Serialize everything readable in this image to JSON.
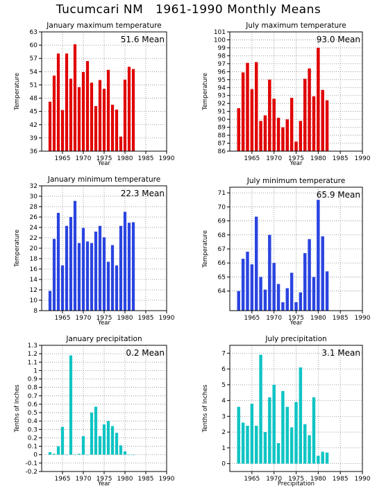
{
  "title": "Tucumcari NM   1961-1990 Monthly Means",
  "chart_data": [
    {
      "type": "bar",
      "title": "January maximum temperature",
      "mean_label": "51.6 Mean",
      "xlabel": "Year",
      "ylabel": "Temperature",
      "color": "#e00000",
      "x": [
        1962,
        1963,
        1964,
        1965,
        1966,
        1967,
        1968,
        1969,
        1970,
        1971,
        1972,
        1973,
        1974,
        1975,
        1976,
        1977,
        1978,
        1979,
        1980,
        1981,
        1982
      ],
      "values": [
        47.2,
        53.1,
        58.1,
        45.3,
        58.1,
        52.4,
        60.2,
        50.5,
        53.9,
        56.4,
        51.5,
        46.2,
        52.1,
        50.1,
        54.4,
        46.5,
        45.4,
        39.3,
        52.2,
        55.1,
        54.6
      ],
      "xlim": [
        1960,
        1990
      ],
      "xticks": [
        1965,
        1970,
        1975,
        1980,
        1985,
        1990
      ],
      "ylim": [
        36,
        63
      ],
      "yticks": [
        36,
        39,
        42,
        45,
        48,
        51,
        54,
        57,
        60,
        63
      ],
      "grid": true
    },
    {
      "type": "bar",
      "title": "July maximum temperature",
      "mean_label": "93.0 Mean",
      "xlabel": "Year",
      "ylabel": "Temperature",
      "color": "#e00000",
      "x": [
        1962,
        1963,
        1964,
        1965,
        1966,
        1967,
        1968,
        1969,
        1970,
        1971,
        1972,
        1973,
        1974,
        1975,
        1976,
        1977,
        1978,
        1979,
        1980,
        1981,
        1982
      ],
      "values": [
        91.4,
        95.9,
        97.1,
        93.8,
        97.2,
        89.8,
        90.5,
        95.0,
        92.6,
        90.2,
        89.0,
        90.0,
        92.7,
        87.2,
        89.8,
        95.1,
        96.4,
        92.9,
        99.0,
        93.7,
        92.4
      ],
      "xlim": [
        1960,
        1990
      ],
      "xticks": [
        1965,
        1970,
        1975,
        1980,
        1985,
        1990
      ],
      "ylim": [
        86,
        101
      ],
      "yticks": [
        86,
        87,
        88,
        89,
        90,
        91,
        92,
        93,
        94,
        95,
        96,
        97,
        98,
        99,
        100,
        101
      ],
      "grid": true
    },
    {
      "type": "bar",
      "title": "January minimum temperature",
      "mean_label": "22.3 Mean",
      "xlabel": "Year",
      "ylabel": "Temperature",
      "color": "#2a44e0",
      "x": [
        1962,
        1963,
        1964,
        1965,
        1966,
        1967,
        1968,
        1969,
        1970,
        1971,
        1972,
        1973,
        1974,
        1975,
        1976,
        1977,
        1978,
        1979,
        1980,
        1981,
        1982
      ],
      "values": [
        11.8,
        21.8,
        26.8,
        16.7,
        24.3,
        26.0,
        29.1,
        21.0,
        23.9,
        21.3,
        21.0,
        23.2,
        24.3,
        22.1,
        17.4,
        20.6,
        16.7,
        24.3,
        27.0,
        24.9,
        25.0
      ],
      "xlim": [
        1960,
        1990
      ],
      "xticks": [
        1965,
        1970,
        1975,
        1980,
        1985,
        1990
      ],
      "ylim": [
        8,
        32
      ],
      "yticks": [
        8,
        10,
        12,
        14,
        16,
        18,
        20,
        22,
        24,
        26,
        28,
        30,
        32
      ],
      "grid": true
    },
    {
      "type": "bar",
      "title": "July minimum temperature",
      "mean_label": "65.9 Mean",
      "xlabel": "Year",
      "ylabel": "Temperature",
      "color": "#2a44e0",
      "x": [
        1962,
        1963,
        1964,
        1965,
        1966,
        1967,
        1968,
        1969,
        1970,
        1971,
        1972,
        1973,
        1974,
        1975,
        1976,
        1977,
        1978,
        1979,
        1980,
        1981,
        1982
      ],
      "values": [
        64.0,
        66.3,
        66.8,
        65.9,
        69.3,
        65.0,
        64.1,
        68.0,
        66.0,
        64.5,
        63.2,
        64.2,
        65.3,
        63.2,
        63.9,
        66.7,
        67.7,
        65.0,
        70.5,
        67.9,
        65.4
      ],
      "xlim": [
        1960,
        1990
      ],
      "xticks": [
        1965,
        1970,
        1975,
        1980,
        1985,
        1990
      ],
      "ylim": [
        62.6,
        71.4
      ],
      "yticks": [
        64,
        65,
        66,
        67,
        68,
        69,
        70,
        71
      ],
      "grid": true
    },
    {
      "type": "bar",
      "title": "January precipitation",
      "mean_label": "0.2 Mean",
      "xlabel": "Year",
      "ylabel": "Tenths of Inches",
      "color": "#10c4c4",
      "x": [
        1962,
        1963,
        1964,
        1965,
        1966,
        1967,
        1968,
        1969,
        1970,
        1971,
        1972,
        1973,
        1974,
        1975,
        1976,
        1977,
        1978,
        1979,
        1980,
        1981,
        1982
      ],
      "values": [
        0.03,
        0.01,
        0.1,
        0.33,
        0.0,
        1.18,
        0.0,
        0.01,
        0.22,
        0.0,
        0.5,
        0.57,
        0.22,
        0.36,
        0.4,
        0.34,
        0.26,
        0.11,
        0.04,
        0.0,
        0.0
      ],
      "xlim": [
        1960,
        1990
      ],
      "xticks": [
        1965,
        1970,
        1975,
        1980,
        1985,
        1990
      ],
      "ylim": [
        -0.2,
        1.3
      ],
      "yticks": [
        -0.2,
        -0.1,
        0,
        0.1,
        0.2,
        0.3,
        0.4,
        0.5,
        0.6,
        0.7,
        0.8,
        0.9,
        1,
        1.1,
        1.2,
        1.3
      ],
      "grid": true
    },
    {
      "type": "bar",
      "title": "July precipitation",
      "mean_label": "3.1 Mean",
      "xlabel": "Precipitation",
      "ylabel": "Tenths of Inches",
      "color": "#10c4c4",
      "x": [
        1962,
        1963,
        1964,
        1965,
        1966,
        1967,
        1968,
        1969,
        1970,
        1971,
        1972,
        1973,
        1974,
        1975,
        1976,
        1977,
        1978,
        1979,
        1980,
        1981,
        1982
      ],
      "values": [
        3.6,
        2.6,
        2.4,
        3.8,
        2.4,
        6.9,
        2.0,
        4.2,
        5.0,
        1.3,
        4.6,
        3.6,
        2.3,
        3.9,
        6.1,
        2.5,
        1.8,
        4.2,
        0.5,
        0.75,
        0.7
      ],
      "xlim": [
        1960,
        1990
      ],
      "xticks": [
        1965,
        1970,
        1975,
        1980,
        1985,
        1990
      ],
      "ylim": [
        -0.5,
        7.5
      ],
      "yticks": [
        0,
        1,
        2,
        3,
        4,
        5,
        6,
        7
      ],
      "grid": true
    }
  ]
}
